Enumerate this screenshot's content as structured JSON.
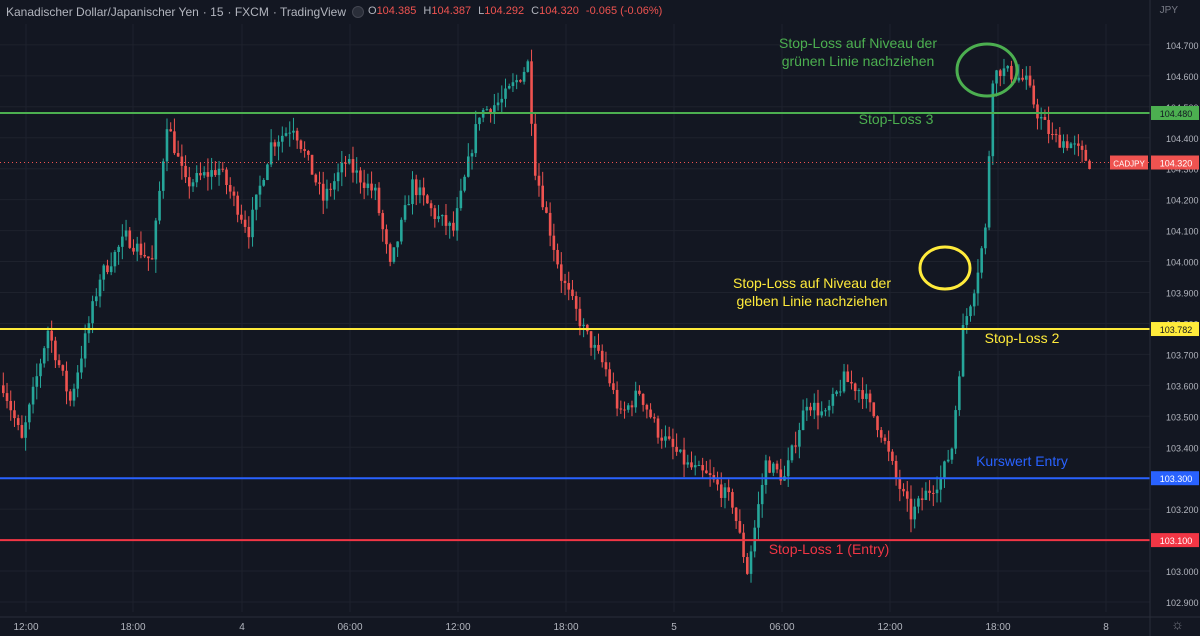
{
  "header": {
    "symbol": "Kanadischer Dollar/Japanischer Yen",
    "interval": "15",
    "exchange": "FXCM",
    "source": "TradingView",
    "open_label": "O",
    "open": "104.385",
    "high_label": "H",
    "high": "104.387",
    "low_label": "L",
    "low": "104.292",
    "close_label": "C",
    "close": "104.320",
    "change": "-0.065 (-0.06%)",
    "currency": "JPY"
  },
  "colors": {
    "background": "#131722",
    "up": "#26a69a",
    "down": "#ef5350",
    "green": "#4caf50",
    "yellow": "#ffeb3b",
    "blue": "#2962ff",
    "red": "#f23645",
    "axis_text": "#b2b5be"
  },
  "chart_data": {
    "type": "candlestick",
    "ylim": [
      102.86,
      104.84
    ],
    "y_ticks": [
      "102.900",
      "103.000",
      "103.100",
      "103.200",
      "103.300",
      "103.400",
      "103.500",
      "103.600",
      "103.700",
      "103.800",
      "103.900",
      "104.000",
      "104.100",
      "104.200",
      "104.300",
      "104.400",
      "104.500",
      "104.600",
      "104.700"
    ],
    "x_ticks": [
      "12:00",
      "18:00",
      "4",
      "06:00",
      "12:00",
      "18:00",
      "5",
      "06:00",
      "12:00",
      "18:00",
      "8"
    ],
    "anchors": [
      [
        0,
        103.6
      ],
      [
        5,
        103.42
      ],
      [
        12,
        103.78
      ],
      [
        18,
        103.55
      ],
      [
        26,
        103.95
      ],
      [
        33,
        104.08
      ],
      [
        40,
        104.0
      ],
      [
        44,
        104.45
      ],
      [
        49,
        104.25
      ],
      [
        58,
        104.3
      ],
      [
        66,
        104.1
      ],
      [
        72,
        104.38
      ],
      [
        78,
        104.44
      ],
      [
        86,
        104.2
      ],
      [
        92,
        104.32
      ],
      [
        100,
        104.22
      ],
      [
        104,
        103.98
      ],
      [
        110,
        104.25
      ],
      [
        116,
        104.15
      ],
      [
        121,
        104.1
      ],
      [
        128,
        104.48
      ],
      [
        134,
        104.52
      ],
      [
        139,
        104.6
      ],
      [
        141,
        104.64
      ],
      [
        143,
        104.3
      ],
      [
        150,
        103.95
      ],
      [
        156,
        103.78
      ],
      [
        162,
        103.65
      ],
      [
        166,
        103.5
      ],
      [
        171,
        103.58
      ],
      [
        176,
        103.45
      ],
      [
        184,
        103.34
      ],
      [
        190,
        103.3
      ],
      [
        196,
        103.22
      ],
      [
        200,
        103.0
      ],
      [
        205,
        103.35
      ],
      [
        210,
        103.3
      ],
      [
        216,
        103.55
      ],
      [
        221,
        103.5
      ],
      [
        226,
        103.62
      ],
      [
        231,
        103.58
      ],
      [
        236,
        103.45
      ],
      [
        240,
        103.3
      ],
      [
        244,
        103.18
      ],
      [
        248,
        103.25
      ],
      [
        252,
        103.3
      ],
      [
        255,
        103.4
      ],
      [
        258,
        103.78
      ],
      [
        261,
        103.92
      ],
      [
        264,
        104.1
      ],
      [
        266,
        104.6
      ],
      [
        268,
        104.62
      ],
      [
        272,
        104.6
      ],
      [
        275,
        104.58
      ],
      [
        278,
        104.48
      ],
      [
        282,
        104.4
      ],
      [
        287,
        104.38
      ],
      [
        292,
        104.32
      ]
    ],
    "hlines": [
      {
        "label": "Stop-Loss 3",
        "value": 104.48,
        "axis_label": "104.480",
        "color": "#4caf50"
      },
      {
        "label": "Stop-Loss 2",
        "value": 103.782,
        "axis_label": "103.782",
        "color": "#ffeb3b"
      },
      {
        "label": "Kurswert Entry",
        "value": 103.3,
        "axis_label": "103.300",
        "color": "#2962ff"
      },
      {
        "label": "Stop-Loss 1 (Entry)",
        "value": 103.1,
        "axis_label": "103.100",
        "color": "#f23645"
      }
    ],
    "last_price": {
      "value": 104.32,
      "label": "104.320",
      "symbol_tag": "CADJPY"
    },
    "annotations": [
      {
        "text": "Stop-Loss auf Niveau der\ngrünen Linie nachziehen",
        "color": "#4caf50"
      },
      {
        "text": "Stop-Loss auf Niveau der\ngelben Linie nachziehen",
        "color": "#ffeb3b"
      }
    ]
  }
}
